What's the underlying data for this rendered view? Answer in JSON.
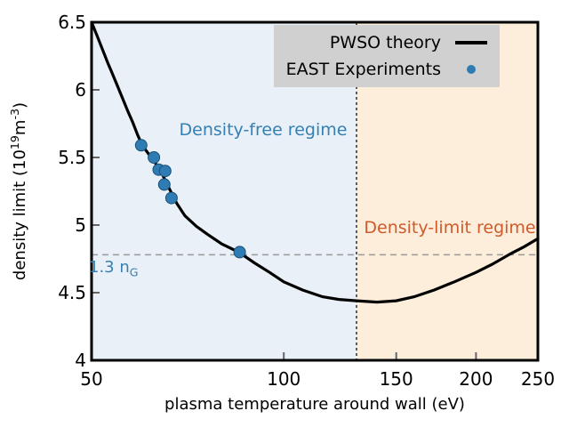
{
  "chart_data": {
    "type": "line+scatter",
    "title": "",
    "xlabel": "plasma temperature around wall (eV)",
    "ylabel": "density limit (10^19 m^-3)",
    "ylabel_parts": {
      "prefix": "density limit (10",
      "sup1": "19",
      "mid": "m",
      "sup2": "-3",
      "suffix": ")"
    },
    "x_scale": "log",
    "x_range": [
      50,
      250
    ],
    "y_range": [
      4.0,
      6.5
    ],
    "grid": false,
    "x_ticks": [
      {
        "value": 50,
        "label": "50"
      },
      {
        "value": 100,
        "label": "100"
      },
      {
        "value": 150,
        "label": "150"
      },
      {
        "value": 200,
        "label": "200"
      },
      {
        "value": 250,
        "label": "250"
      }
    ],
    "y_ticks": [
      {
        "value": 4,
        "label": "4"
      },
      {
        "value": 4.5,
        "label": "4.5"
      },
      {
        "value": 5,
        "label": "5"
      },
      {
        "value": 5.5,
        "label": "5.5"
      },
      {
        "value": 6,
        "label": "6"
      },
      {
        "value": 6.5,
        "label": "6.5"
      }
    ],
    "series": [
      {
        "name": "PWSO theory",
        "type": "line",
        "color": "#000000",
        "x": [
          50,
          51,
          52,
          53,
          54,
          55,
          56,
          57,
          58,
          59,
          60,
          62,
          64,
          66,
          68,
          70,
          73,
          76,
          80,
          85,
          90,
          95,
          100,
          107,
          115,
          122,
          130,
          140,
          150,
          160,
          172,
          185,
          200,
          212,
          227,
          238,
          250
        ],
        "y": [
          6.5,
          6.4,
          6.3,
          6.2,
          6.11,
          6.02,
          5.93,
          5.84,
          5.76,
          5.67,
          5.59,
          5.5,
          5.41,
          5.28,
          5.16,
          5.07,
          4.99,
          4.93,
          4.86,
          4.8,
          4.72,
          4.65,
          4.58,
          4.52,
          4.47,
          4.45,
          4.44,
          4.43,
          4.44,
          4.47,
          4.52,
          4.58,
          4.65,
          4.71,
          4.79,
          4.84,
          4.9
        ]
      },
      {
        "name": "EAST Experiments",
        "type": "scatter",
        "color": "#2f7cb5",
        "edge_color": "#1b4f72",
        "x": [
          59.8,
          62.6,
          63.7,
          65.2,
          65.0,
          66.7,
          85.3
        ],
        "y": [
          5.59,
          5.5,
          5.41,
          5.4,
          5.3,
          5.2,
          4.8
        ]
      }
    ],
    "regions": [
      {
        "label": "Density-free regime",
        "range": [
          50,
          130
        ],
        "color": "#e9f0f8",
        "label_color": "#3580b3"
      },
      {
        "label": "Density-limit regime",
        "range": [
          130,
          250
        ],
        "color": "#fceedb",
        "label_color": "#d05a2c"
      }
    ],
    "reference_lines": [
      {
        "axis": "y",
        "value": 4.78,
        "label": "1.3 n_G",
        "label_parts": {
          "text": "1.3 n",
          "sub": "G"
        },
        "label_color": "#3580b3",
        "color": "#999999",
        "style": "dashed"
      },
      {
        "axis": "x",
        "value": 130,
        "label": "",
        "color": "#2a2a2a",
        "style": "dashed"
      }
    ],
    "legend": {
      "position": "top-right",
      "background": "#d0d0d0",
      "items": [
        {
          "label": "PWSO theory",
          "sample": "line"
        },
        {
          "label": "EAST Experiments",
          "sample": "dot"
        }
      ]
    }
  }
}
